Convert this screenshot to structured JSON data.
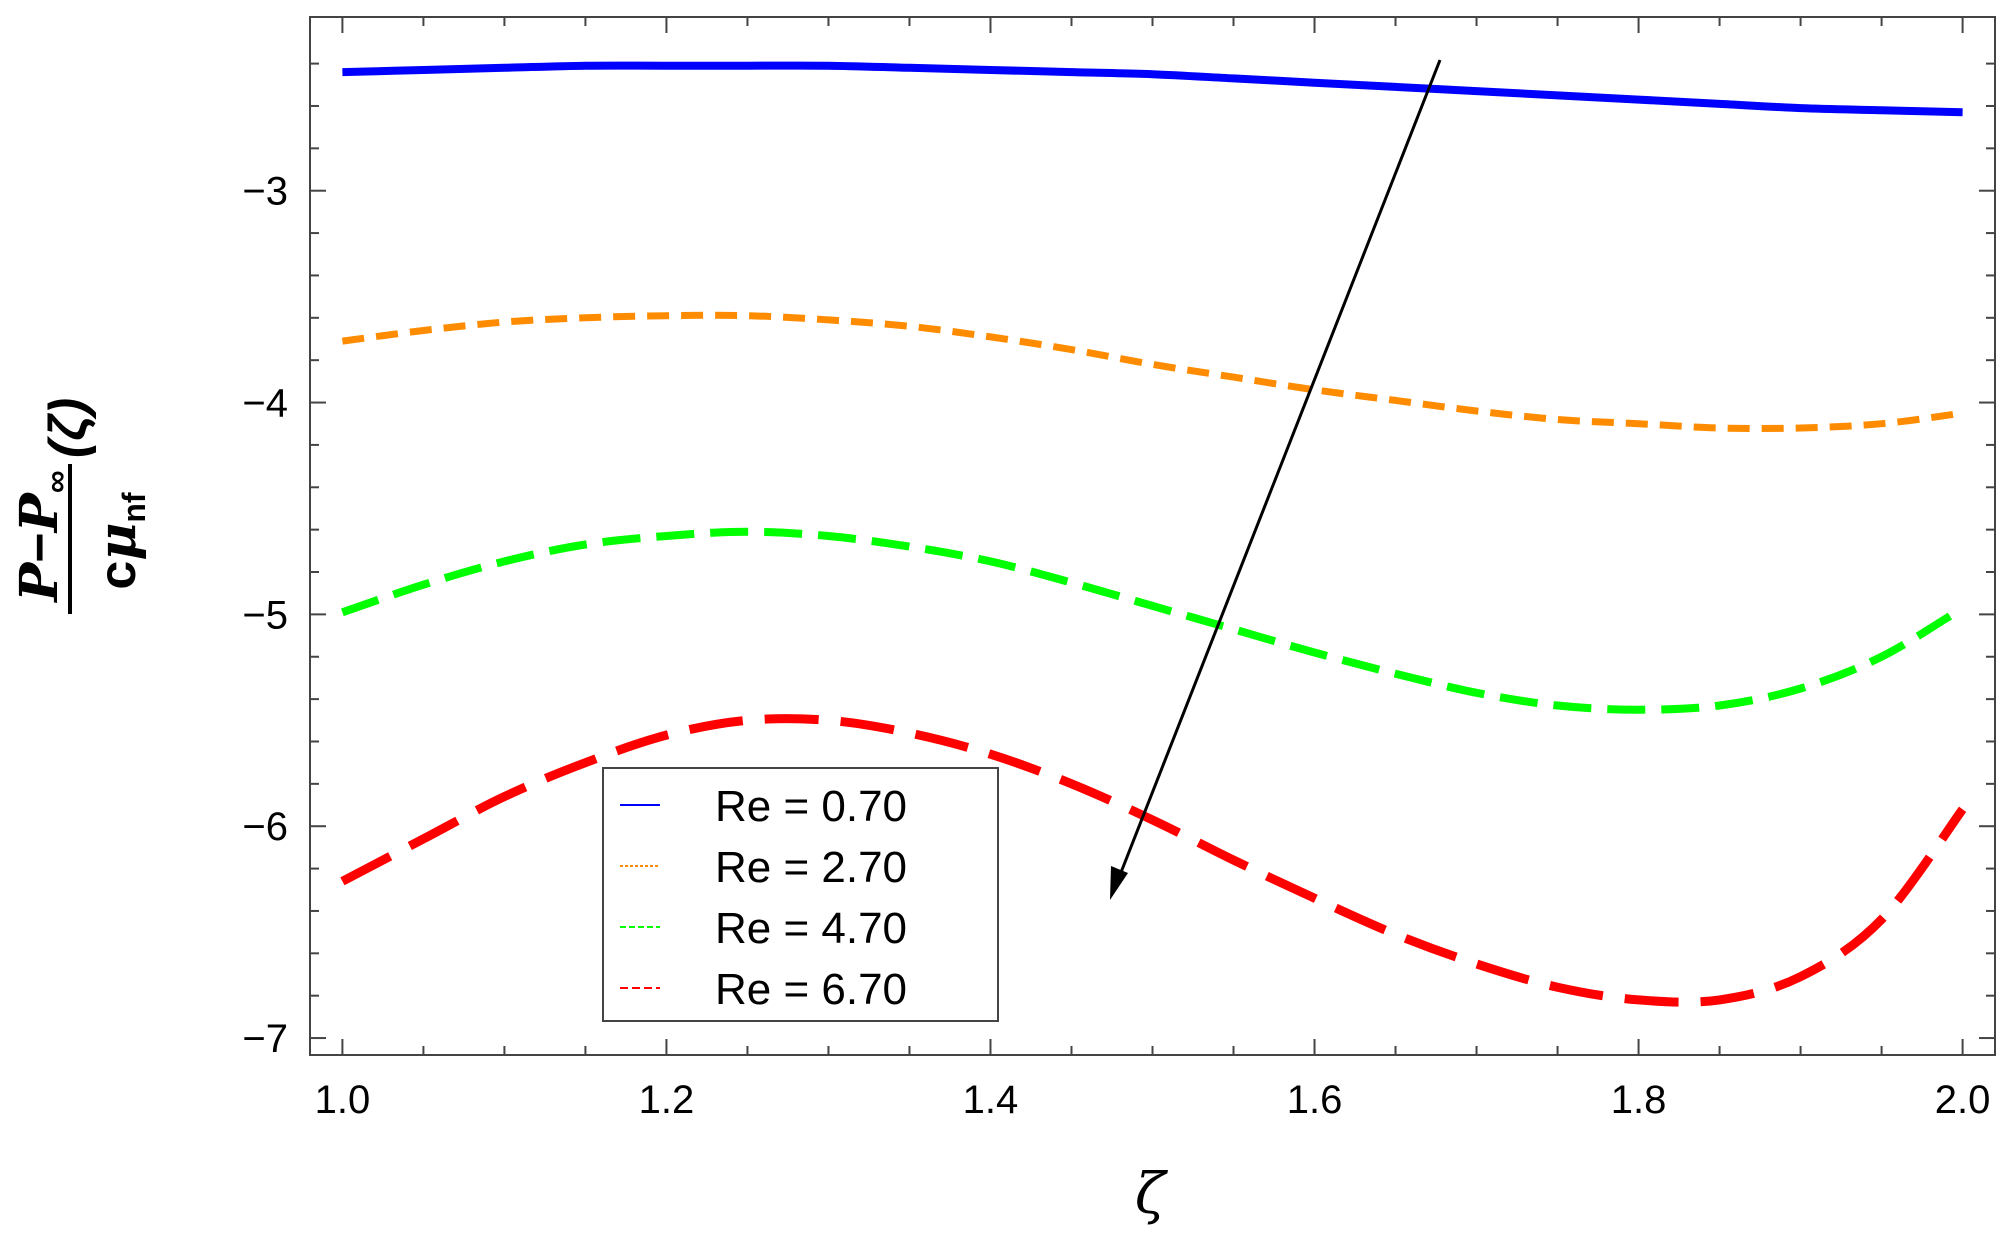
{
  "chart_data": {
    "type": "line",
    "xlabel": "ζ",
    "ylabel": {
      "numerator_1": "P",
      "minus": "−",
      "numerator_2": "P",
      "numerator_sub": "∞",
      "suffix": "(ζ)",
      "denominator_c": "c",
      "denominator_mu": "μ",
      "denominator_sub": "nf"
    },
    "xlim": [
      0.98,
      2.02
    ],
    "ylim": [
      -7.08,
      -2.18
    ],
    "x_ticks": [
      1.0,
      1.2,
      1.4,
      1.6,
      1.8,
      2.0
    ],
    "x_tick_labels": [
      "1.0",
      "1.2",
      "1.4",
      "1.6",
      "1.8",
      "2.0"
    ],
    "y_ticks": [
      -7,
      -6,
      -5,
      -4,
      -3
    ],
    "y_tick_labels": [
      "−7",
      "−6",
      "−5",
      "−4",
      "−3"
    ],
    "grid": false,
    "legend_position": "bottom-center",
    "annotation": "arrow indicating increasing Re",
    "x": [
      1.0,
      1.05,
      1.1,
      1.15,
      1.2,
      1.25,
      1.3,
      1.35,
      1.4,
      1.45,
      1.5,
      1.55,
      1.6,
      1.65,
      1.7,
      1.75,
      1.8,
      1.85,
      1.9,
      1.95,
      2.0
    ],
    "series": [
      {
        "name": "Re = 0.70",
        "color": "#0000ff",
        "dash": "solid",
        "values": [
          -2.44,
          -2.43,
          -2.42,
          -2.41,
          -2.41,
          -2.41,
          -2.41,
          -2.42,
          -2.43,
          -2.44,
          -2.45,
          -2.47,
          -2.49,
          -2.51,
          -2.53,
          -2.55,
          -2.57,
          -2.59,
          -2.61,
          -2.62,
          -2.63
        ]
      },
      {
        "name": "Re = 2.70",
        "color": "#ff8c00",
        "dash": "short",
        "values": [
          -3.71,
          -3.66,
          -3.62,
          -3.6,
          -3.59,
          -3.59,
          -3.61,
          -3.64,
          -3.69,
          -3.75,
          -3.82,
          -3.88,
          -3.94,
          -3.99,
          -4.04,
          -4.08,
          -4.1,
          -4.12,
          -4.12,
          -4.1,
          -4.05
        ]
      },
      {
        "name": "Re = 4.70",
        "color": "#00ff00",
        "dash": "medium",
        "values": [
          -4.99,
          -4.86,
          -4.75,
          -4.67,
          -4.63,
          -4.61,
          -4.63,
          -4.68,
          -4.75,
          -4.85,
          -4.96,
          -5.07,
          -5.18,
          -5.28,
          -5.37,
          -5.43,
          -5.45,
          -5.43,
          -5.35,
          -5.2,
          -4.97
        ]
      },
      {
        "name": "Re = 6.70",
        "color": "#ff0000",
        "dash": "long",
        "values": [
          -6.26,
          -6.06,
          -5.86,
          -5.7,
          -5.57,
          -5.5,
          -5.5,
          -5.56,
          -5.66,
          -5.8,
          -5.97,
          -6.16,
          -6.34,
          -6.51,
          -6.65,
          -6.76,
          -6.82,
          -6.82,
          -6.71,
          -6.44,
          -5.92
        ]
      }
    ]
  }
}
